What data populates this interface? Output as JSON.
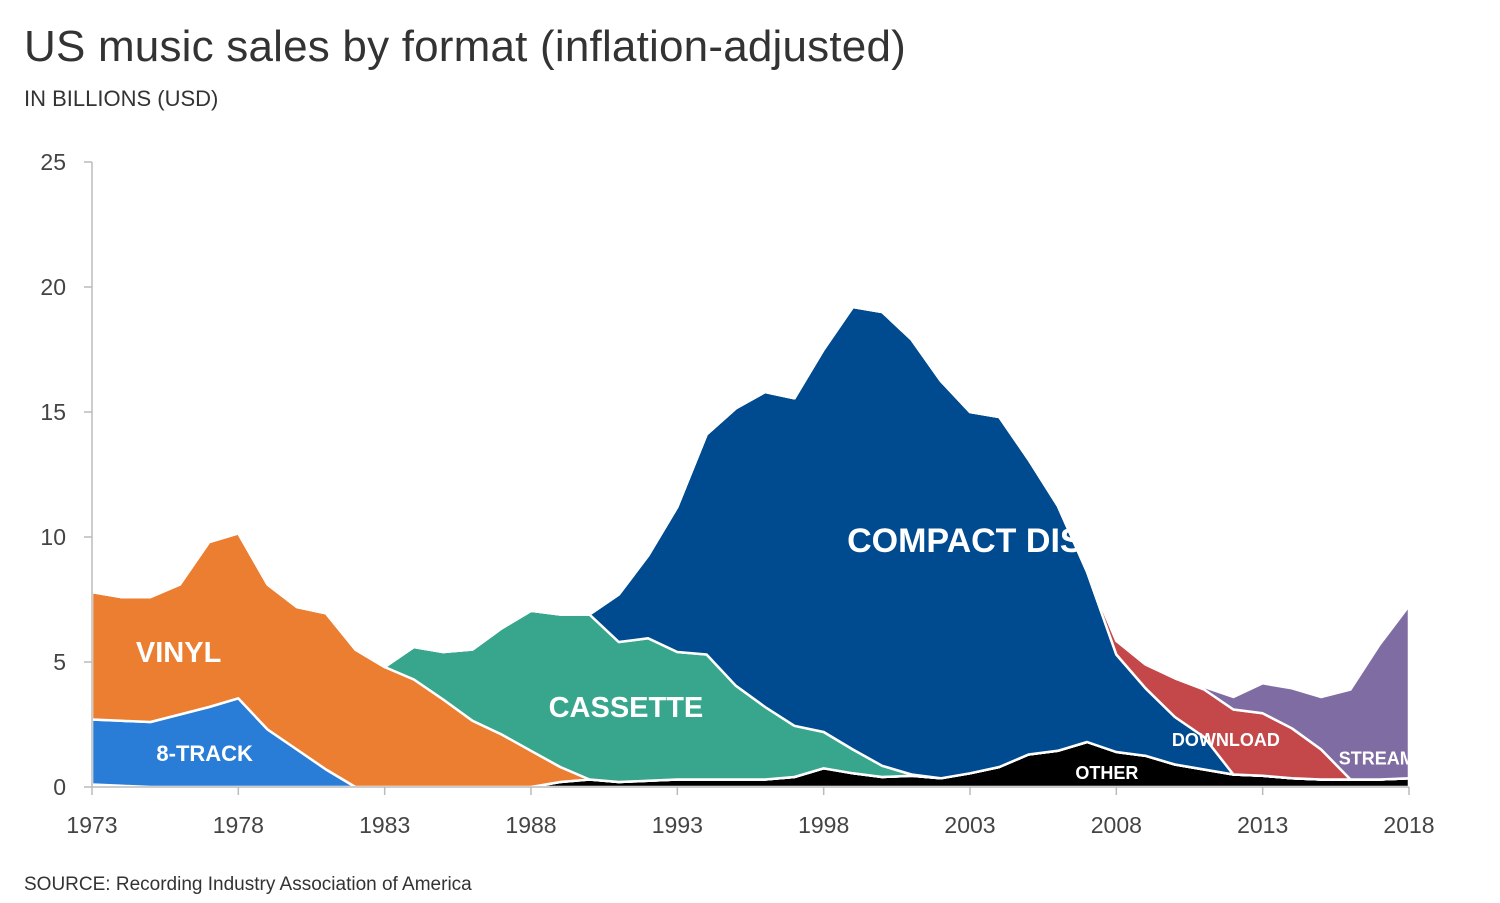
{
  "title": "US music sales by format (inflation-adjusted)",
  "subtitle": "IN BILLIONS (USD)",
  "source": "SOURCE: Recording Industry Association of America",
  "chart_data": {
    "type": "area",
    "stacked": true,
    "x": [
      1973,
      1974,
      1975,
      1976,
      1977,
      1978,
      1979,
      1980,
      1981,
      1982,
      1983,
      1984,
      1985,
      1986,
      1987,
      1988,
      1989,
      1990,
      1991,
      1992,
      1993,
      1994,
      1995,
      1996,
      1997,
      1998,
      1999,
      2000,
      2001,
      2002,
      2003,
      2004,
      2005,
      2006,
      2007,
      2008,
      2009,
      2010,
      2011,
      2012,
      2013,
      2014,
      2015,
      2016,
      2017,
      2018
    ],
    "xticks": [
      1973,
      1978,
      1983,
      1988,
      1993,
      1998,
      2003,
      2008,
      2013,
      2018
    ],
    "yticks": [
      0,
      5,
      10,
      15,
      20,
      25
    ],
    "ylim": [
      0,
      25
    ],
    "xlim": [
      1973,
      2018
    ],
    "series": [
      {
        "name": "OTHER",
        "color": "#000000",
        "values": [
          0.1,
          0.05,
          0,
          0,
          0,
          0,
          0,
          0,
          0,
          0,
          0,
          0,
          0,
          0,
          0,
          0,
          0.2,
          0.3,
          0.2,
          0.25,
          0.3,
          0.3,
          0.3,
          0.3,
          0.4,
          0.75,
          0.55,
          0.4,
          0.45,
          0.35,
          0.55,
          0.8,
          1.3,
          1.45,
          1.8,
          1.4,
          1.25,
          0.9,
          0.7,
          0.5,
          0.45,
          0.35,
          0.3,
          0.3,
          0.3,
          0.35
        ]
      },
      {
        "name": "8-TRACK",
        "color": "#2a7dd6",
        "values": [
          2.6,
          2.6,
          2.6,
          2.9,
          3.2,
          3.55,
          2.3,
          1.5,
          0.7,
          0,
          0,
          0,
          0,
          0,
          0,
          0,
          0,
          0,
          0,
          0,
          0,
          0,
          0,
          0,
          0,
          0,
          0,
          0,
          0,
          0,
          0,
          0,
          0,
          0,
          0,
          0,
          0,
          0,
          0,
          0,
          0,
          0,
          0,
          0,
          0,
          0
        ]
      },
      {
        "name": "VINYL",
        "color": "#ec7e32",
        "values": [
          5.1,
          4.95,
          5.0,
          5.2,
          6.6,
          6.6,
          5.8,
          5.7,
          6.25,
          5.5,
          4.8,
          4.3,
          3.5,
          2.65,
          2.1,
          1.45,
          0.6,
          0,
          0,
          0,
          0,
          0,
          0,
          0,
          0,
          0,
          0,
          0,
          0,
          0,
          0,
          0,
          0,
          0,
          0,
          0,
          0,
          0,
          0,
          0,
          0,
          0,
          0,
          0,
          0,
          0
        ]
      },
      {
        "name": "CASSETTE",
        "color": "#38a68c",
        "values": [
          0,
          0,
          0,
          0,
          0,
          0,
          0,
          0,
          0,
          0,
          0,
          1.3,
          1.9,
          2.85,
          4.25,
          5.6,
          6.1,
          6.6,
          5.6,
          5.7,
          5.1,
          5.0,
          3.75,
          2.9,
          2.05,
          1.45,
          0.95,
          0.45,
          0.05,
          0,
          0,
          0,
          0,
          0,
          0,
          0,
          0,
          0,
          0,
          0,
          0,
          0,
          0,
          0,
          0,
          0
        ]
      },
      {
        "name": "COMPACT DISC",
        "color": "#004a8f",
        "values": [
          0,
          0,
          0,
          0,
          0,
          0,
          0,
          0,
          0,
          0,
          0,
          0,
          0,
          0,
          0,
          0,
          0,
          0,
          1.9,
          3.3,
          5.8,
          8.8,
          11.1,
          12.6,
          13.1,
          15.3,
          17.7,
          18.15,
          17.4,
          15.9,
          14.45,
          14.0,
          11.8,
          9.8,
          6.8,
          3.9,
          2.7,
          1.9,
          1.3,
          0,
          0,
          0,
          0,
          0,
          0,
          0
        ]
      },
      {
        "name": "DOWNLOAD",
        "color": "#c4484a",
        "values": [
          0,
          0,
          0,
          0,
          0,
          0,
          0,
          0,
          0,
          0,
          0,
          0,
          0,
          0,
          0,
          0,
          0,
          0,
          0,
          0,
          0,
          0,
          0,
          0,
          0,
          0,
          0,
          0,
          0,
          0,
          0,
          0,
          0,
          0,
          0.01,
          0.55,
          0.95,
          1.55,
          1.9,
          2.6,
          2.5,
          2.0,
          1.2,
          0,
          0,
          0
        ]
      },
      {
        "name": "STREAMING",
        "color": "#7f6ca3",
        "values": [
          0,
          0,
          0,
          0,
          0,
          0,
          0,
          0,
          0,
          0,
          0,
          0,
          0,
          0,
          0,
          0,
          0,
          0,
          0,
          0,
          0,
          0,
          0,
          0,
          0,
          0,
          0,
          0,
          0,
          0,
          0,
          0,
          0,
          0,
          0,
          0,
          0,
          0,
          0.1,
          0.5,
          1.2,
          1.6,
          2.1,
          3.6,
          5.4,
          6.9
        ]
      }
    ],
    "labels": [
      {
        "text": "COMPACT DISC",
        "series": "COMPACT DISC",
        "x": 1998.8,
        "y": 9.4
      },
      {
        "text": "VINYL",
        "series": "VINYL",
        "x": 1974.5,
        "y": 5.0
      },
      {
        "text": "CASSETTE",
        "series": "CASSETTE",
        "x": 1988.6,
        "y": 2.8
      },
      {
        "text": "8-TRACK",
        "series": "8-TRACK",
        "x": 1975.2,
        "y": 1.05
      },
      {
        "text": "DOWNLOAD",
        "series": "DOWNLOAD",
        "x": 2009.9,
        "y": 1.65
      },
      {
        "text": "OTHER",
        "series": "OTHER",
        "x": 2006.6,
        "y": 0.32
      },
      {
        "text": "STREAMING",
        "series": "STREAMING",
        "x": 2015.6,
        "y": 0.9
      }
    ]
  }
}
